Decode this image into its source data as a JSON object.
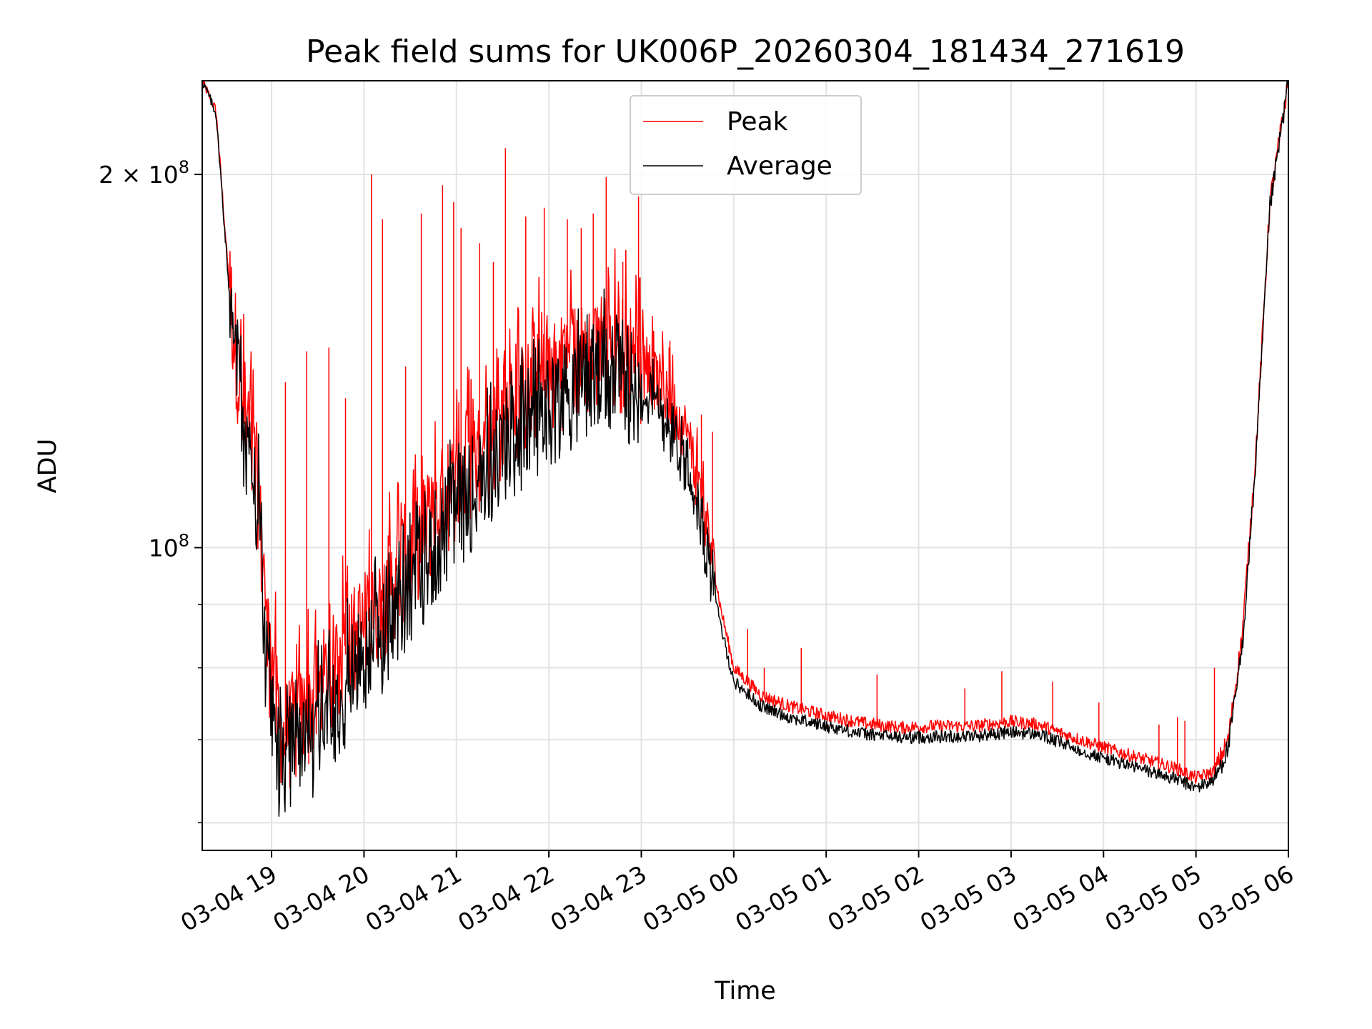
{
  "chart_data": {
    "type": "line",
    "title": "Peak field sums for UK006P_20260304_181434_271619",
    "xlabel": "Time",
    "ylabel": "ADU",
    "yscale": "log",
    "xlim": [
      18.25,
      30.0
    ],
    "ylim": [
      57000000,
      238000000
    ],
    "grid": true,
    "legend_position": "upper-center",
    "x_unit": "hours since 03-04 00:00",
    "x_ticks": [
      {
        "value": 19,
        "label": "03-04 19"
      },
      {
        "value": 20,
        "label": "03-04 20"
      },
      {
        "value": 21,
        "label": "03-04 21"
      },
      {
        "value": 22,
        "label": "03-04 22"
      },
      {
        "value": 23,
        "label": "03-04 23"
      },
      {
        "value": 24,
        "label": "03-05 00"
      },
      {
        "value": 25,
        "label": "03-05 01"
      },
      {
        "value": 26,
        "label": "03-05 02"
      },
      {
        "value": 27,
        "label": "03-05 03"
      },
      {
        "value": 28,
        "label": "03-05 04"
      },
      {
        "value": 29,
        "label": "03-05 05"
      },
      {
        "value": 30,
        "label": "03-05 06"
      }
    ],
    "y_major_ticks": [
      {
        "value": 200000000,
        "mantissa": "2",
        "times": "×",
        "base": "10",
        "exp": "8"
      },
      {
        "value": 100000000,
        "mantissa": "",
        "times": "",
        "base": "10",
        "exp": "8"
      }
    ],
    "y_minor_ticks": [
      60000000,
      70000000,
      80000000,
      90000000
    ],
    "series": [
      {
        "name": "Peak",
        "color": "#ff0000",
        "x": [
          18.25,
          18.4,
          18.55,
          18.7,
          18.85,
          18.95,
          19.1,
          19.3,
          19.5,
          19.7,
          19.9,
          20.1,
          20.3,
          20.5,
          20.7,
          20.9,
          21.1,
          21.3,
          21.5,
          21.7,
          21.9,
          22.1,
          22.3,
          22.5,
          22.7,
          22.9,
          23.1,
          23.3,
          23.5,
          23.7,
          23.85,
          24.0,
          24.3,
          24.6,
          25.0,
          25.4,
          25.8,
          26.2,
          26.6,
          27.0,
          27.3,
          27.6,
          27.9,
          28.2,
          28.5,
          28.8,
          29.0,
          29.2,
          29.35,
          29.5,
          29.65,
          29.8,
          30.0
        ],
        "values": [
          238000000,
          225000000,
          160000000,
          126000000,
          112000000,
          84000000,
          70000000,
          72000000,
          76000000,
          80000000,
          84000000,
          88000000,
          93000000,
          99000000,
          104000000,
          110000000,
          115000000,
          120000000,
          126000000,
          131000000,
          135000000,
          138000000,
          141000000,
          143000000,
          144000000,
          142000000,
          138000000,
          132000000,
          123000000,
          105000000,
          90000000,
          80000000,
          76000000,
          74500000,
          73200000,
          72200000,
          71600000,
          71800000,
          71800000,
          72400000,
          72000000,
          70600000,
          69400000,
          68300000,
          67300000,
          66300000,
          65200000,
          66000000,
          70000000,
          85000000,
          120000000,
          190000000,
          238000000
        ],
        "spikes": [
          {
            "x": 18.62,
            "value": 138000000
          },
          {
            "x": 18.78,
            "value": 130000000
          },
          {
            "x": 19.15,
            "value": 136000000
          },
          {
            "x": 19.38,
            "value": 144000000
          },
          {
            "x": 19.62,
            "value": 145000000
          },
          {
            "x": 19.8,
            "value": 132000000
          },
          {
            "x": 20.08,
            "value": 200000000
          },
          {
            "x": 20.2,
            "value": 184000000
          },
          {
            "x": 20.45,
            "value": 140000000
          },
          {
            "x": 20.62,
            "value": 186000000
          },
          {
            "x": 20.85,
            "value": 196000000
          },
          {
            "x": 20.97,
            "value": 190000000
          },
          {
            "x": 21.05,
            "value": 181000000
          },
          {
            "x": 21.25,
            "value": 176000000
          },
          {
            "x": 21.4,
            "value": 170000000
          },
          {
            "x": 21.53,
            "value": 210000000
          },
          {
            "x": 21.75,
            "value": 185000000
          },
          {
            "x": 21.95,
            "value": 188000000
          },
          {
            "x": 22.2,
            "value": 184000000
          },
          {
            "x": 22.35,
            "value": 181000000
          },
          {
            "x": 22.48,
            "value": 186000000
          },
          {
            "x": 22.62,
            "value": 199000000
          },
          {
            "x": 22.8,
            "value": 170000000
          },
          {
            "x": 22.97,
            "value": 192000000
          },
          {
            "x": 23.1,
            "value": 140000000
          },
          {
            "x": 23.3,
            "value": 145000000
          },
          {
            "x": 23.65,
            "value": 128000000
          },
          {
            "x": 23.77,
            "value": 124000000
          },
          {
            "x": 24.15,
            "value": 86000000
          },
          {
            "x": 24.33,
            "value": 80000000
          },
          {
            "x": 24.73,
            "value": 83000000
          },
          {
            "x": 25.55,
            "value": 79000000
          },
          {
            "x": 26.5,
            "value": 77000000
          },
          {
            "x": 26.9,
            "value": 79500000
          },
          {
            "x": 27.45,
            "value": 78000000
          },
          {
            "x": 27.95,
            "value": 75000000
          },
          {
            "x": 28.6,
            "value": 72000000
          },
          {
            "x": 28.8,
            "value": 73000000
          },
          {
            "x": 28.88,
            "value": 72500000
          },
          {
            "x": 29.2,
            "value": 80000000
          }
        ]
      },
      {
        "name": "Average",
        "color": "#000000",
        "x": [
          18.25,
          18.4,
          18.55,
          18.7,
          18.85,
          18.95,
          19.1,
          19.3,
          19.5,
          19.7,
          19.9,
          20.1,
          20.3,
          20.5,
          20.7,
          20.9,
          21.1,
          21.3,
          21.5,
          21.7,
          21.9,
          22.1,
          22.3,
          22.5,
          22.7,
          22.9,
          23.1,
          23.3,
          23.5,
          23.7,
          23.85,
          24.0,
          24.3,
          24.6,
          25.0,
          25.4,
          25.8,
          26.2,
          26.6,
          27.0,
          27.3,
          27.6,
          27.9,
          28.2,
          28.5,
          28.8,
          29.0,
          29.2,
          29.35,
          29.5,
          29.65,
          29.8,
          30.0
        ],
        "values": [
          238000000,
          224000000,
          158000000,
          123000000,
          108000000,
          78000000,
          66000000,
          68000000,
          71000000,
          75000000,
          79000000,
          83000000,
          87000000,
          93000000,
          98000000,
          104000000,
          109000000,
          114000000,
          119000000,
          124000000,
          128000000,
          131000000,
          134000000,
          136000000,
          137000000,
          135000000,
          131000000,
          125000000,
          116000000,
          100000000,
          87000000,
          78000000,
          74500000,
          73000000,
          71800000,
          70800000,
          70300000,
          70400000,
          70500000,
          71000000,
          70700000,
          69300000,
          68000000,
          67000000,
          66000000,
          65000000,
          64000000,
          65000000,
          69000000,
          83000000,
          118000000,
          188000000,
          238000000
        ]
      }
    ]
  }
}
